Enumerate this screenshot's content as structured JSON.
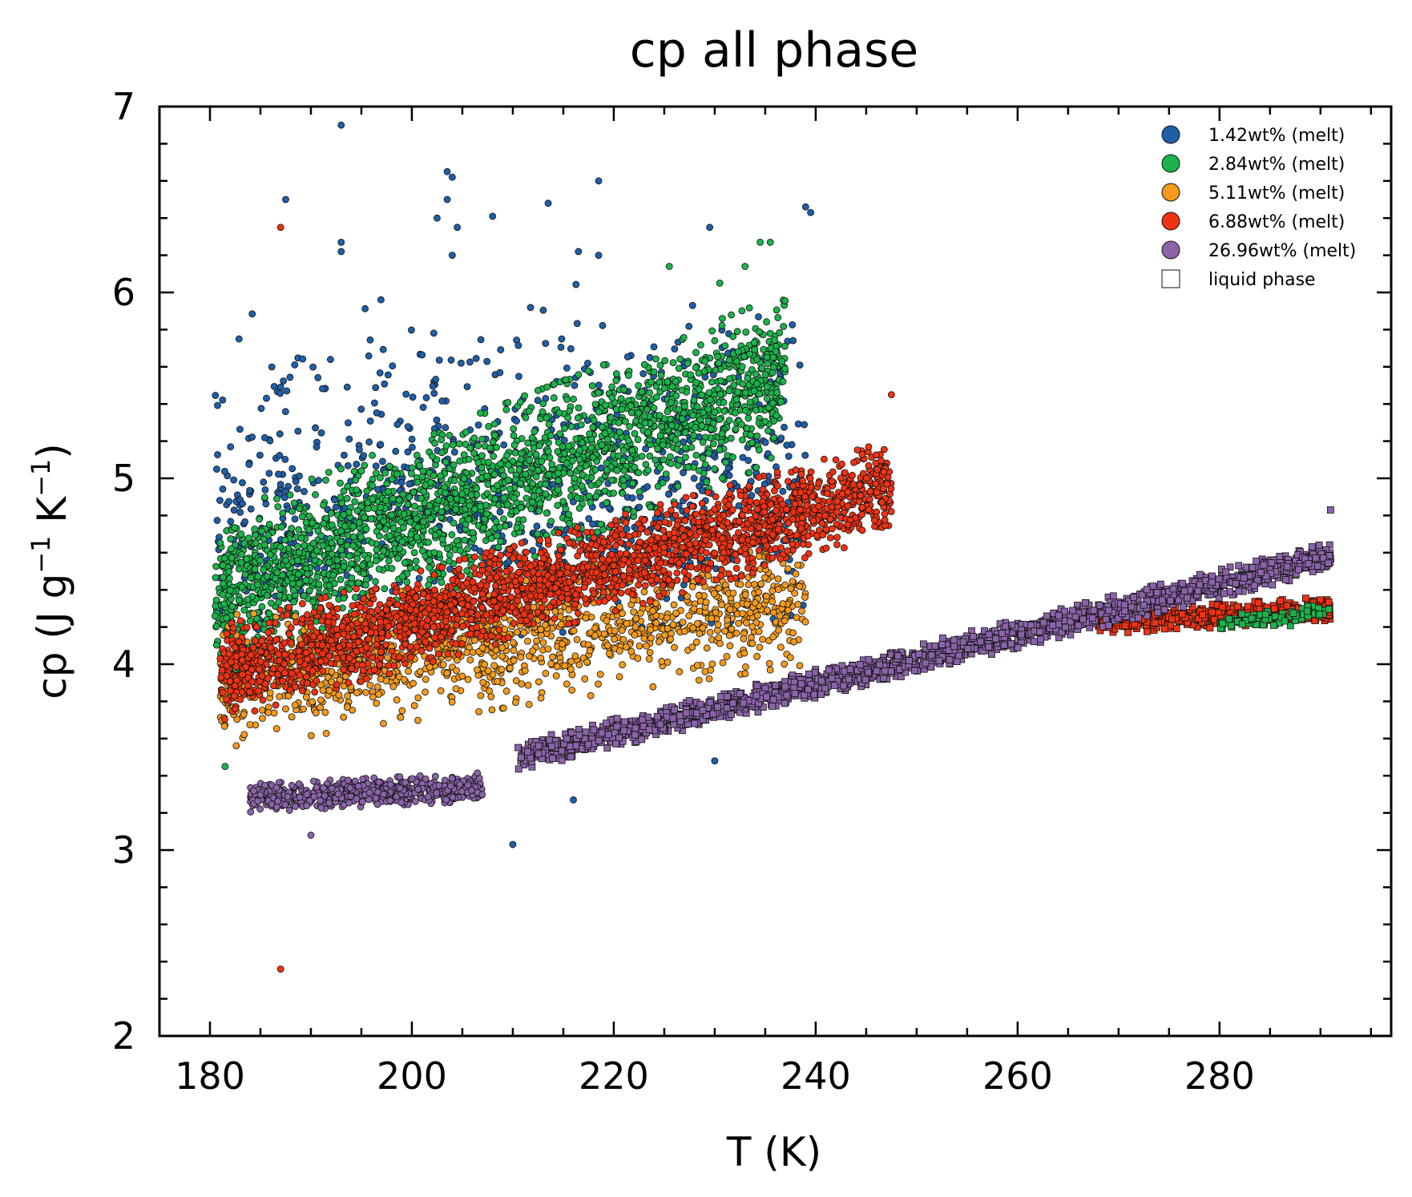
{
  "chart_data": {
    "type": "scatter",
    "title": "cp all phase",
    "xlabel": "T (K)",
    "ylabel_parts": [
      "cp (J g",
      "−1",
      " K",
      "−1",
      ")"
    ],
    "xlim": [
      175,
      297
    ],
    "ylim": [
      2,
      7
    ],
    "xticks": [
      180,
      200,
      220,
      240,
      260,
      280
    ],
    "yticks": [
      2,
      3,
      4,
      5,
      6,
      7
    ],
    "xtick_labels": [
      "180",
      "200",
      "220",
      "240",
      "260",
      "280"
    ],
    "ytick_labels": [
      "2",
      "3",
      "4",
      "5",
      "6",
      "7"
    ],
    "grid": false,
    "legend_position": "top-right",
    "legend": [
      {
        "label": "1.42wt% (melt)",
        "marker": "circle",
        "color": "#1f5fa8"
      },
      {
        "label": "2.84wt% (melt)",
        "marker": "circle",
        "color": "#1bb34b"
      },
      {
        "label": "5.11wt% (melt)",
        "marker": "circle",
        "color": "#f39a1c"
      },
      {
        "label": "6.88wt% (melt)",
        "marker": "circle",
        "color": "#ee3314"
      },
      {
        "label": "26.96wt% (melt)",
        "marker": "circle",
        "color": "#8a63a8"
      },
      {
        "label": "liquid phase",
        "marker": "square",
        "color": "#ffffff"
      }
    ],
    "series": [
      {
        "color": "#1f5fa8",
        "marker": "circle",
        "segments": [
          {
            "x": [
              180.5,
              239
            ],
            "mean": [
              4.75,
              4.95
            ],
            "spread": 0.55,
            "n": 800
          },
          {
            "x": [
              181,
              239
            ],
            "mean": [
              5.6,
              5.6
            ],
            "spread": 0.35,
            "n": 120
          }
        ],
        "outliers": [
          [
            193,
            6.9
          ],
          [
            203.5,
            6.65
          ],
          [
            204,
            6.62
          ],
          [
            218.5,
            6.6
          ],
          [
            187.5,
            6.5
          ],
          [
            203.5,
            6.5
          ],
          [
            213.5,
            6.48
          ],
          [
            239,
            6.46
          ],
          [
            239.5,
            6.43
          ],
          [
            202.5,
            6.4
          ],
          [
            208,
            6.41
          ],
          [
            204.5,
            6.35
          ],
          [
            229.5,
            6.35
          ],
          [
            193,
            6.27
          ],
          [
            216.5,
            6.22
          ],
          [
            204,
            6.2
          ],
          [
            193,
            6.22
          ],
          [
            218.5,
            6.2
          ],
          [
            210,
            3.03
          ],
          [
            216,
            3.27
          ],
          [
            230,
            3.48
          ]
        ]
      },
      {
        "color": "#1bb34b",
        "marker": "circle",
        "segments": [
          {
            "x": [
              180.5,
              237
            ],
            "mean": [
              4.35,
              5.55
            ],
            "spread": 0.35,
            "n": 2200
          }
        ],
        "outliers": [
          [
            225.5,
            6.14
          ],
          [
            233,
            6.14
          ],
          [
            234.5,
            6.27
          ],
          [
            235.5,
            6.27
          ],
          [
            230.5,
            6.05
          ],
          [
            181.5,
            3.45
          ]
        ]
      },
      {
        "color": "#f39a1c",
        "marker": "circle",
        "segments": [
          {
            "x": [
              181,
              239
            ],
            "mean": [
              3.9,
              4.35
            ],
            "spread": 0.28,
            "n": 1300
          }
        ],
        "outliers": []
      },
      {
        "color": "#ee3314",
        "marker": "circle",
        "segments": [
          {
            "x": [
              181,
              247.5
            ],
            "mean": [
              3.95,
              4.95
            ],
            "spread": 0.2,
            "n": 2400
          }
        ],
        "outliers": [
          [
            187,
            6.35
          ],
          [
            187,
            2.36
          ],
          [
            247.5,
            5.45
          ]
        ]
      },
      {
        "color": "#8a63a8",
        "marker": "circle",
        "segments": [
          {
            "x": [
              184,
              207
            ],
            "mean": [
              3.28,
              3.34
            ],
            "spread": 0.06,
            "n": 650
          }
        ],
        "outliers": [
          [
            190,
            3.08
          ]
        ]
      },
      {
        "color": "#ee3314",
        "marker": "square",
        "segments": [
          {
            "x": [
              268,
              291
            ],
            "mean": [
              4.22,
              4.3
            ],
            "spread": 0.05,
            "n": 500
          }
        ],
        "outliers": []
      },
      {
        "color": "#1bb34b",
        "marker": "square",
        "segments": [
          {
            "x": [
              280,
              291
            ],
            "mean": [
              4.22,
              4.28
            ],
            "spread": 0.04,
            "n": 80
          }
        ],
        "outliers": []
      },
      {
        "color": "#8a63a8",
        "marker": "square",
        "segments": [
          {
            "x": [
              210.5,
              291
            ],
            "mean": [
              3.5,
              4.58
            ],
            "spread": 0.06,
            "n": 1900
          }
        ],
        "outliers": [
          [
            291,
            4.83
          ]
        ]
      }
    ]
  }
}
